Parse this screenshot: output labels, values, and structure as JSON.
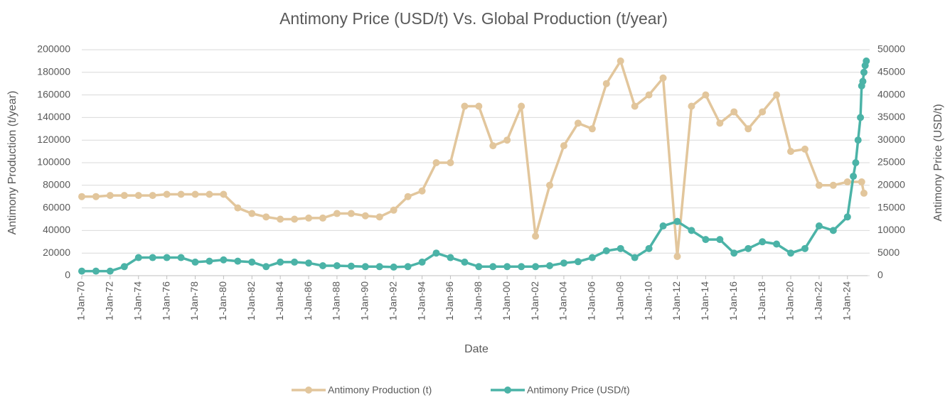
{
  "chart_data": {
    "type": "line",
    "title": "Antimony Price (USD/t) Vs. Global Production (t/year)",
    "x_label": "Date",
    "y_label": "Antimony Production (t/year)",
    "y2_label": "Antimony Price (USD/t)",
    "xlim": [
      "1-Jan-70",
      "1-Jun-25"
    ],
    "xticks": [
      "1-Jan-70",
      "1-Jan-72",
      "1-Jan-74",
      "1-Jan-76",
      "1-Jan-78",
      "1-Jan-80",
      "1-Jan-82",
      "1-Jan-84",
      "1-Jan-86",
      "1-Jan-88",
      "1-Jan-90",
      "1-Jan-92",
      "1-Jan-94",
      "1-Jan-96",
      "1-Jan-98",
      "1-Jan-00",
      "1-Jan-02",
      "1-Jan-04",
      "1-Jan-06",
      "1-Jan-08",
      "1-Jan-10",
      "1-Jan-12",
      "1-Jan-14",
      "1-Jan-16",
      "1-Jan-18",
      "1-Jan-20",
      "1-Jan-22",
      "1-Jan-24"
    ],
    "ylim": [
      0,
      200000
    ],
    "yticks": [
      0,
      20000,
      40000,
      60000,
      80000,
      100000,
      120000,
      140000,
      160000,
      180000,
      200000
    ],
    "y2lim": [
      0,
      50000
    ],
    "y2ticks": [
      0,
      5000,
      10000,
      15000,
      20000,
      25000,
      30000,
      35000,
      40000,
      45000,
      50000
    ],
    "grid": true,
    "legend": "bottom",
    "series": [
      {
        "name": "Antimony Production (t)",
        "color": "#e2c69c",
        "x": [
          "1-Jan-70",
          "1-Jan-71",
          "1-Jan-72",
          "1-Jan-73",
          "1-Jan-74",
          "1-Jan-75",
          "1-Jan-76",
          "1-Jan-77",
          "1-Jan-78",
          "1-Jan-79",
          "1-Jan-80",
          "1-Jan-81",
          "1-Jan-82",
          "1-Jan-83",
          "1-Jan-84",
          "1-Jan-85",
          "1-Jan-86",
          "1-Jan-87",
          "1-Jan-88",
          "1-Jan-89",
          "1-Jan-90",
          "1-Jan-91",
          "1-Jan-92",
          "1-Jan-93",
          "1-Jan-94",
          "1-Jan-95",
          "1-Jan-96",
          "1-Jan-97",
          "1-Jan-98",
          "1-Jan-99",
          "1-Jan-00",
          "1-Jan-01",
          "1-Jan-02",
          "1-Jan-03",
          "1-Jan-04",
          "1-Jan-05",
          "1-Jan-06",
          "1-Jan-07",
          "1-Jan-08",
          "1-Jan-09",
          "1-Jan-10",
          "1-Jan-11",
          "1-Jan-12",
          "1-Jan-13",
          "1-Jan-14",
          "1-Jan-15",
          "1-Jan-16",
          "1-Jan-17",
          "1-Jan-18",
          "1-Jan-19",
          "1-Jan-20",
          "1-Jan-21",
          "1-Jan-22",
          "1-Jan-23",
          "1-Jan-24",
          "1-Jan-25",
          "1-Mar-25"
        ],
        "values": [
          70000,
          70000,
          71000,
          71000,
          71000,
          71000,
          72000,
          72000,
          72000,
          72000,
          72000,
          60000,
          55000,
          52000,
          50000,
          50000,
          51000,
          51000,
          55000,
          55000,
          53000,
          52000,
          58000,
          70000,
          75000,
          100000,
          100000,
          150000,
          150000,
          115000,
          120000,
          150000,
          35000,
          80000,
          115000,
          135000,
          130000,
          170000,
          190000,
          150000,
          160000,
          175000,
          17000,
          150000,
          160000,
          135000,
          145000,
          130000,
          145000,
          160000,
          110000,
          112000,
          80000,
          80000,
          83000,
          83000,
          73000
        ]
      },
      {
        "name": "Antimony Price (USD/t)",
        "color": "#4bb3a7",
        "axis": "y2",
        "x": [
          "1-Jan-70",
          "1-Jan-71",
          "1-Jan-72",
          "1-Jan-73",
          "1-Jan-74",
          "1-Jan-75",
          "1-Jan-76",
          "1-Jan-77",
          "1-Jan-78",
          "1-Jan-79",
          "1-Jan-80",
          "1-Jan-81",
          "1-Jan-82",
          "1-Jan-83",
          "1-Jan-84",
          "1-Jan-85",
          "1-Jan-86",
          "1-Jan-87",
          "1-Jan-88",
          "1-Jan-89",
          "1-Jan-90",
          "1-Jan-91",
          "1-Jan-92",
          "1-Jan-93",
          "1-Jan-94",
          "1-Jan-95",
          "1-Jan-96",
          "1-Jan-97",
          "1-Jan-98",
          "1-Jan-99",
          "1-Jan-00",
          "1-Jan-01",
          "1-Jan-02",
          "1-Jan-03",
          "1-Jan-04",
          "1-Jan-05",
          "1-Jan-06",
          "1-Jan-07",
          "1-Jan-08",
          "1-Jan-09",
          "1-Jan-10",
          "1-Jan-11",
          "1-Jan-12",
          "1-Jan-13",
          "1-Jan-14",
          "1-Jan-15",
          "1-Jan-16",
          "1-Jan-17",
          "1-Jan-18",
          "1-Jan-19",
          "1-Jan-20",
          "1-Jan-21",
          "1-Jan-22",
          "1-Jan-23",
          "1-Jan-24",
          "1-Jun-24",
          "1-Aug-24",
          "1-Oct-24",
          "1-Dec-24",
          "1-Jan-25",
          "1-Feb-25",
          "1-Mar-25",
          "1-Apr-25",
          "1-May-25"
        ],
        "values": [
          1000,
          1000,
          1000,
          2000,
          4000,
          4000,
          4000,
          4000,
          3000,
          3200,
          3500,
          3200,
          3000,
          2000,
          3000,
          3000,
          2800,
          2200,
          2200,
          2100,
          2000,
          2000,
          1900,
          2000,
          3000,
          5000,
          4000,
          3000,
          2000,
          2000,
          2000,
          2000,
          2000,
          2200,
          2800,
          3100,
          4000,
          5500,
          6000,
          4000,
          6000,
          11000,
          12000,
          10000,
          8000,
          8000,
          5000,
          6000,
          7500,
          7000,
          5000,
          6000,
          11000,
          10000,
          13000,
          22000,
          25000,
          30000,
          35000,
          42000,
          43000,
          45000,
          46500,
          47500
        ]
      }
    ]
  }
}
